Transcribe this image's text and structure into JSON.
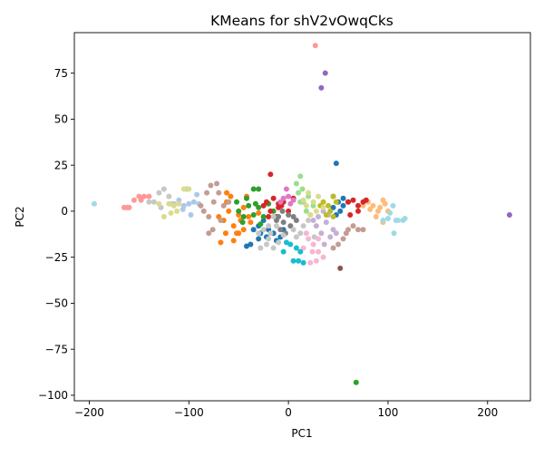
{
  "chart_data": {
    "type": "scatter",
    "title": "KMeans for shV2vOwqCks",
    "xlabel": "PC1",
    "ylabel": "PC2",
    "xlim": [
      -215,
      243
    ],
    "ylim": [
      -103,
      97
    ],
    "xticks": [
      -200,
      -100,
      0,
      100,
      200
    ],
    "yticks": [
      -100,
      -75,
      -50,
      -25,
      0,
      25,
      50,
      75
    ],
    "grid": false,
    "legend": "none",
    "series": [
      {
        "color": "#1f77b4",
        "points": [
          [
            -30,
            -8
          ],
          [
            -35,
            -10
          ],
          [
            -28,
            -12
          ],
          [
            -25,
            -5
          ],
          [
            -22,
            -14
          ],
          [
            -38,
            -18
          ],
          [
            -30,
            -15
          ],
          [
            -20,
            -10
          ],
          [
            50,
            5
          ],
          [
            45,
            8
          ],
          [
            55,
            3
          ],
          [
            52,
            0
          ],
          [
            48,
            -2
          ],
          [
            55,
            7
          ],
          [
            60,
            5
          ],
          [
            45,
            2
          ],
          [
            48,
            26
          ],
          [
            -8,
            -14
          ],
          [
            -5,
            -10
          ],
          [
            -42,
            -19
          ],
          [
            -15,
            -12
          ],
          [
            -12,
            -16
          ]
        ]
      },
      {
        "color": "#aec7e8",
        "points": [
          [
            -110,
            6
          ],
          [
            -105,
            3
          ],
          [
            -95,
            5
          ],
          [
            -100,
            4
          ],
          [
            -90,
            4
          ],
          [
            -102,
            12
          ],
          [
            -92,
            9
          ],
          [
            -115,
            4
          ],
          [
            -98,
            -2
          ],
          [
            -106,
            1
          ]
        ]
      },
      {
        "color": "#ff7f0e",
        "points": [
          [
            -70,
            -3
          ],
          [
            -65,
            -5
          ],
          [
            -60,
            0
          ],
          [
            -55,
            -8
          ],
          [
            -50,
            -2
          ],
          [
            -45,
            2
          ],
          [
            -40,
            -3
          ],
          [
            -62,
            5
          ],
          [
            -58,
            8
          ],
          [
            -48,
            -5
          ],
          [
            -52,
            -12
          ],
          [
            -63,
            -12
          ],
          [
            -68,
            -17
          ],
          [
            -55,
            -16
          ],
          [
            -50,
            -12
          ],
          [
            -38,
            -6
          ],
          [
            -30,
            -1
          ],
          [
            -45,
            -10
          ],
          [
            -62,
            10
          ],
          [
            -42,
            8
          ]
        ]
      },
      {
        "color": "#ffbb78",
        "points": [
          [
            80,
            5
          ],
          [
            85,
            3
          ],
          [
            90,
            0
          ],
          [
            95,
            6
          ],
          [
            92,
            2
          ],
          [
            88,
            -3
          ],
          [
            100,
            0
          ],
          [
            95,
            -6
          ],
          [
            82,
            1
          ],
          [
            97,
            4
          ],
          [
            75,
            3
          ]
        ]
      },
      {
        "color": "#2ca02c",
        "points": [
          [
            -50,
            0
          ],
          [
            -45,
            -3
          ],
          [
            -40,
            3
          ],
          [
            -35,
            -2
          ],
          [
            -30,
            2
          ],
          [
            -25,
            -3
          ],
          [
            -20,
            4
          ],
          [
            -15,
            0
          ],
          [
            -42,
            7
          ],
          [
            -30,
            12
          ],
          [
            -35,
            12
          ],
          [
            -52,
            5
          ],
          [
            -33,
            4
          ],
          [
            -28,
            -7
          ],
          [
            -46,
            -6
          ],
          [
            68,
            -93
          ]
        ]
      },
      {
        "color": "#98df8a",
        "points": [
          [
            10,
            10
          ],
          [
            12,
            5
          ],
          [
            8,
            15
          ],
          [
            15,
            5
          ],
          [
            20,
            8
          ],
          [
            18,
            0
          ],
          [
            25,
            3
          ],
          [
            12,
            19
          ],
          [
            22,
            -2
          ],
          [
            14,
            12
          ]
        ]
      },
      {
        "color": "#d62728",
        "points": [
          [
            -22,
            5
          ],
          [
            -15,
            7
          ],
          [
            -10,
            2
          ],
          [
            -5,
            5
          ],
          [
            0,
            0
          ],
          [
            5,
            7
          ],
          [
            -18,
            0
          ],
          [
            -12,
            -3
          ],
          [
            -7,
            3
          ],
          [
            -20,
            -3
          ],
          [
            -25,
            3
          ],
          [
            60,
            5
          ],
          [
            65,
            6
          ],
          [
            70,
            3
          ],
          [
            75,
            5
          ],
          [
            78,
            6
          ],
          [
            70,
            0
          ],
          [
            62,
            -2
          ],
          [
            -18,
            20
          ],
          [
            -10,
            4
          ]
        ]
      },
      {
        "color": "#ff9896",
        "points": [
          [
            -150,
            8
          ],
          [
            -145,
            8
          ],
          [
            -140,
            8
          ],
          [
            -160,
            2
          ],
          [
            -165,
            2
          ],
          [
            -155,
            6
          ],
          [
            -148,
            6
          ],
          [
            -162,
            2
          ]
        ]
      },
      {
        "color": "#9467bd",
        "points": [
          [
            37,
            75
          ],
          [
            33,
            67
          ],
          [
            222,
            -2
          ]
        ]
      },
      {
        "color": "#c5b0d5",
        "points": [
          [
            25,
            -5
          ],
          [
            30,
            -3
          ],
          [
            35,
            0
          ],
          [
            40,
            -2
          ],
          [
            45,
            -10
          ],
          [
            48,
            -12
          ],
          [
            38,
            -6
          ],
          [
            33,
            -12
          ],
          [
            42,
            -14
          ],
          [
            28,
            -8
          ],
          [
            36,
            -18
          ]
        ]
      },
      {
        "color": "#8c564b",
        "points": [
          [
            52,
            -31
          ]
        ]
      },
      {
        "color": "#c49c94",
        "points": [
          [
            -85,
            0
          ],
          [
            -80,
            -3
          ],
          [
            -75,
            5
          ],
          [
            -70,
            10
          ],
          [
            -78,
            14
          ],
          [
            -65,
            3
          ],
          [
            -60,
            5
          ],
          [
            -82,
            10
          ],
          [
            -72,
            15
          ],
          [
            -88,
            3
          ],
          [
            -68,
            -5
          ],
          [
            -76,
            -10
          ],
          [
            -80,
            -12
          ],
          [
            65,
            -8
          ],
          [
            70,
            -10
          ],
          [
            75,
            -10
          ],
          [
            60,
            -10
          ],
          [
            55,
            -15
          ],
          [
            50,
            -18
          ],
          [
            45,
            -20
          ],
          [
            58,
            -12
          ]
        ]
      },
      {
        "color": "#e377c2",
        "points": [
          [
            -5,
            7
          ],
          [
            0,
            8
          ],
          [
            5,
            6
          ],
          [
            -2,
            12
          ],
          [
            2,
            4
          ],
          [
            -8,
            5
          ]
        ]
      },
      {
        "color": "#f7b6d2",
        "points": [
          [
            20,
            -15
          ],
          [
            25,
            -18
          ],
          [
            30,
            -22
          ],
          [
            22,
            -28
          ],
          [
            28,
            -27
          ],
          [
            15,
            -20
          ],
          [
            35,
            -25
          ],
          [
            18,
            -12
          ],
          [
            24,
            -22
          ],
          [
            30,
            -15
          ]
        ]
      },
      {
        "color": "#7f7f7f",
        "points": [
          [
            -10,
            -3
          ],
          [
            -5,
            -6
          ],
          [
            0,
            -2
          ],
          [
            5,
            -3
          ],
          [
            -8,
            -10
          ],
          [
            2,
            -8
          ],
          [
            -3,
            -12
          ],
          [
            8,
            -5
          ],
          [
            -12,
            -5
          ],
          [
            -6,
            0
          ]
        ]
      },
      {
        "color": "#c7c7c7",
        "points": [
          [
            -130,
            10
          ],
          [
            -125,
            12
          ],
          [
            -135,
            5
          ],
          [
            -120,
            8
          ],
          [
            -128,
            2
          ],
          [
            -140,
            5
          ],
          [
            -118,
            4
          ],
          [
            -25,
            -10
          ],
          [
            -20,
            -15
          ],
          [
            -15,
            -20
          ],
          [
            -10,
            -17
          ],
          [
            -18,
            -12
          ],
          [
            -12,
            -8
          ],
          [
            -22,
            -18
          ],
          [
            26,
            -14
          ],
          [
            20,
            -5
          ],
          [
            5,
            -10
          ],
          [
            12,
            -12
          ],
          [
            -30,
            -12
          ],
          [
            -28,
            -20
          ],
          [
            -20,
            -8
          ],
          [
            -15,
            -3
          ],
          [
            15,
            -8
          ],
          [
            -5,
            -13
          ],
          [
            8,
            -14
          ]
        ]
      },
      {
        "color": "#bcbd22",
        "points": [
          [
            35,
            5
          ],
          [
            40,
            3
          ],
          [
            45,
            8
          ],
          [
            42,
            0
          ],
          [
            38,
            -2
          ],
          [
            48,
            5
          ],
          [
            32,
            3
          ],
          [
            45,
            -3
          ]
        ]
      },
      {
        "color": "#dbdb8d",
        "points": [
          [
            -120,
            4
          ],
          [
            -115,
            3
          ],
          [
            -110,
            4
          ],
          [
            -105,
            12
          ],
          [
            -100,
            12
          ],
          [
            -125,
            -3
          ],
          [
            -118,
            -1
          ],
          [
            -130,
            4
          ],
          [
            -112,
            0
          ],
          [
            20,
            10
          ],
          [
            25,
            5
          ],
          [
            30,
            8
          ],
          [
            18,
            3
          ],
          [
            28,
            0
          ],
          [
            15,
            6
          ],
          [
            22,
            -2
          ],
          [
            35,
            2
          ]
        ]
      },
      {
        "color": "#17becf",
        "points": [
          [
            -2,
            -17
          ],
          [
            2,
            -18
          ],
          [
            5,
            -27
          ],
          [
            10,
            -27
          ],
          [
            15,
            -28
          ],
          [
            8,
            -20
          ],
          [
            12,
            -22
          ],
          [
            -5,
            -22
          ]
        ]
      },
      {
        "color": "#9edae5",
        "points": [
          [
            -195,
            4
          ],
          [
            105,
            3
          ],
          [
            108,
            -5
          ],
          [
            110,
            -5
          ],
          [
            115,
            -5
          ],
          [
            117,
            -4
          ],
          [
            106,
            -12
          ],
          [
            100,
            -4
          ],
          [
            95,
            -5
          ],
          [
            102,
            -1
          ]
        ]
      },
      {
        "color": "#ff9896",
        "points": [
          [
            27,
            90
          ]
        ]
      }
    ]
  }
}
